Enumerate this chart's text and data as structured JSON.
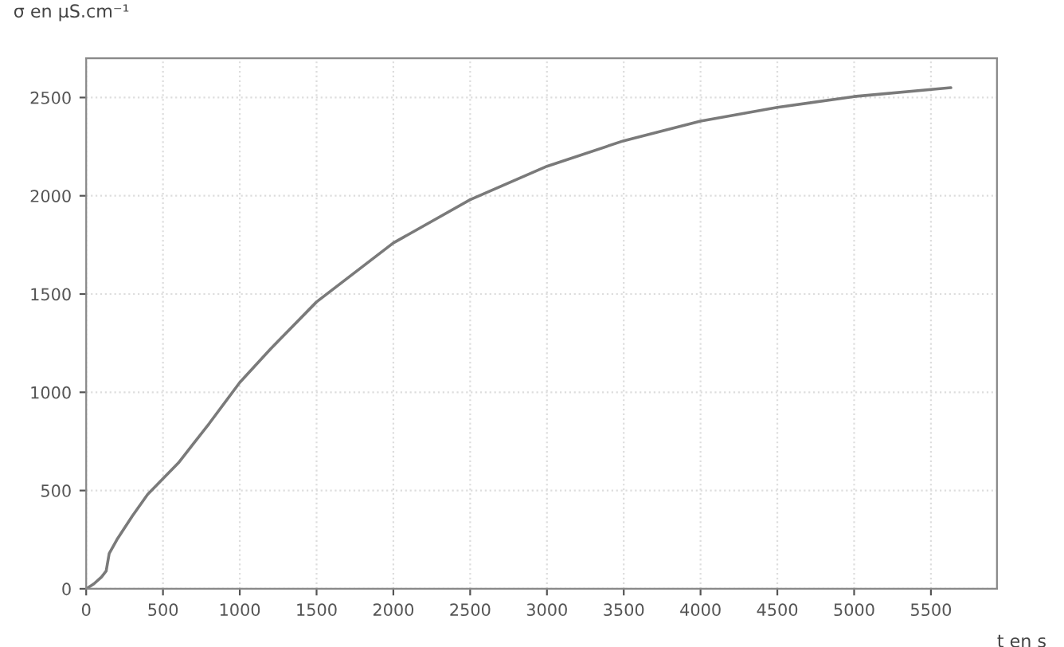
{
  "chart_data": {
    "type": "line",
    "xlabel": "t en s",
    "ylabel": "σ en µS.cm⁻¹",
    "x": [
      0,
      50,
      100,
      130,
      150,
      200,
      300,
      400,
      500,
      600,
      700,
      800,
      1000,
      1200,
      1500,
      2000,
      2500,
      3000,
      3500,
      4000,
      4500,
      5000,
      5630
    ],
    "series": [
      {
        "color": "#7a7a7a",
        "values": [
          0,
          25,
          60,
          90,
          180,
          250,
          370,
          480,
          560,
          640,
          740,
          840,
          1050,
          1220,
          1460,
          1760,
          1980,
          2150,
          2280,
          2380,
          2450,
          2505,
          2550
        ]
      }
    ],
    "xlim": [
      0,
      5930
    ],
    "ylim": [
      0,
      2700
    ],
    "xticks": [
      0,
      500,
      1000,
      1500,
      2000,
      2500,
      3000,
      3500,
      4000,
      4500,
      5000,
      5500
    ],
    "yticks": [
      0,
      500,
      1000,
      1500,
      2000,
      2500
    ],
    "grid": true,
    "marker": "none",
    "line_style": "solid"
  }
}
